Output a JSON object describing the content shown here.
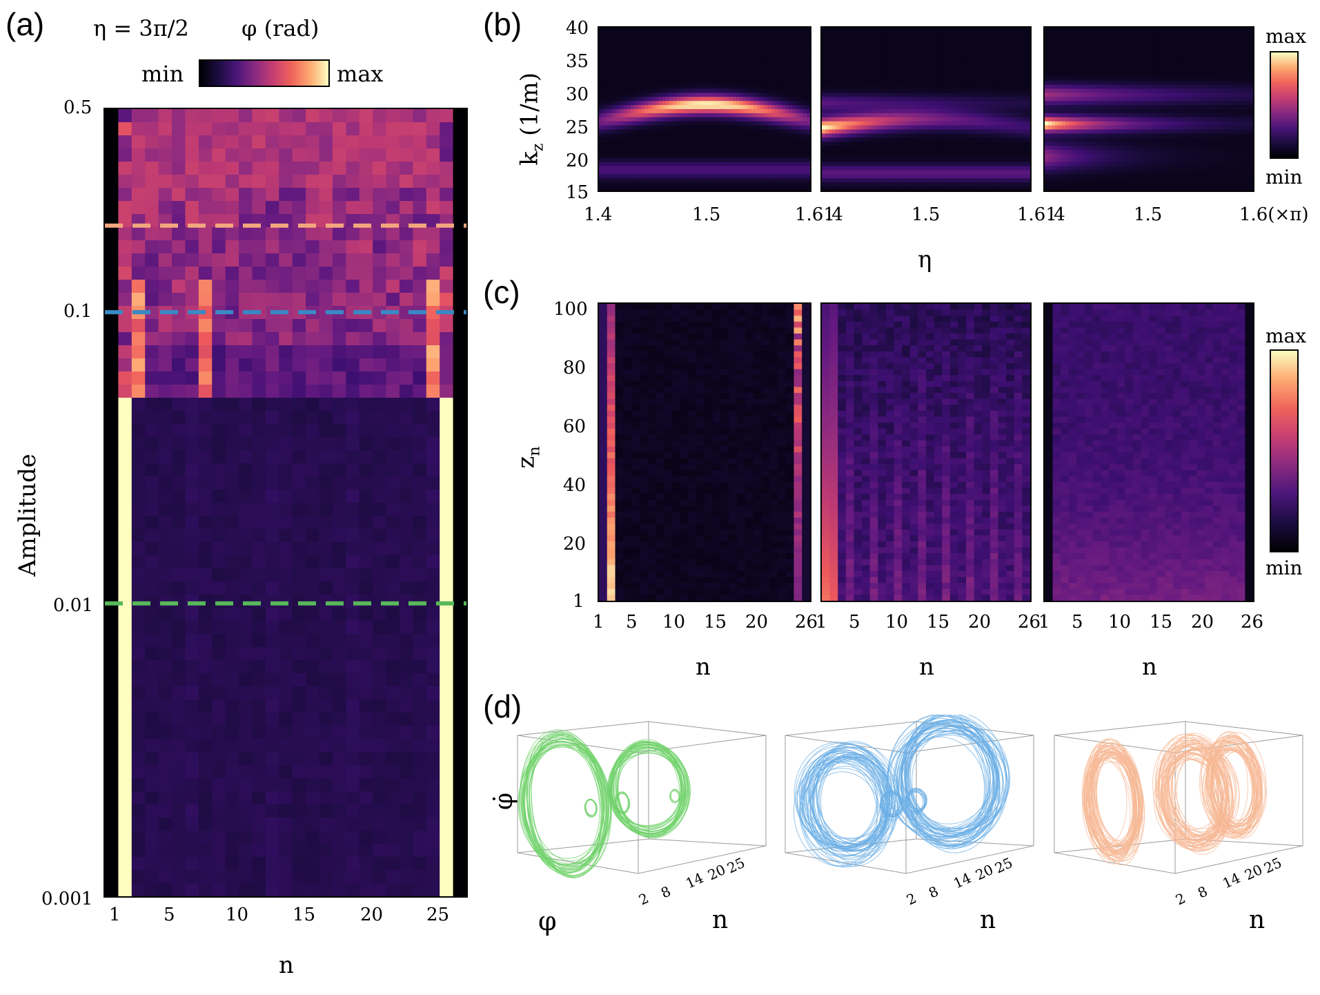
{
  "panels": {
    "a": {
      "label": "(a)",
      "eta_text": "η = 3π/2",
      "colorbar_title": "φ (rad)",
      "cbar_min": "min",
      "cbar_max": "max",
      "ylabel": "Amplitude",
      "xlabel": "n",
      "y_ticks": [
        "0.5",
        "0.1",
        "0.01",
        "0.001"
      ],
      "x_ticks": [
        "1",
        "5",
        "10",
        "15",
        "20",
        "25"
      ],
      "dashed_lines": [
        {
          "amplitude": 0.2,
          "color": "#f4a77e"
        },
        {
          "amplitude": 0.1,
          "color": "#3a88c4"
        },
        {
          "amplitude": 0.01,
          "color": "#58b85a"
        }
      ]
    },
    "b": {
      "label": "(b)",
      "ylabel": "k",
      "ylabel_sub": "z",
      "ylabel_unit": " (1/m)",
      "xlabel": "η",
      "y_ticks": [
        "40",
        "35",
        "30",
        "25",
        "20",
        "15"
      ],
      "x_ticks_1": [
        "1.4",
        "1.5",
        "1.61"
      ],
      "x_ticks_2": [
        ".4",
        "1.5",
        "1.61"
      ],
      "x_ticks_3": [
        ".4",
        "1.5",
        "1.6(×π)"
      ],
      "cbar_min": "min",
      "cbar_max": "max"
    },
    "c": {
      "label": "(c)",
      "ylabel": "z",
      "ylabel_sub": "n",
      "xlabel": "n",
      "y_ticks": [
        "100",
        "80",
        "60",
        "40",
        "20",
        "1"
      ],
      "x_ticks_1": [
        "1",
        "5",
        "10",
        "15",
        "20",
        "26"
      ],
      "x_ticks_2": [
        "1",
        "5",
        "10",
        "15",
        "20",
        "26"
      ],
      "x_ticks_3": [
        "1",
        "5",
        "10",
        "15",
        "20",
        "26"
      ],
      "cbar_min": "min",
      "cbar_max": "max"
    },
    "d": {
      "label": "(d)",
      "phidot_label": "φ̇",
      "phi_label": "φ",
      "n_label": "n",
      "n_ticks": [
        "2",
        "8",
        "14",
        "20",
        "25"
      ],
      "colors": [
        "#6fd26a",
        "#69aee6",
        "#f7b894"
      ]
    }
  }
}
